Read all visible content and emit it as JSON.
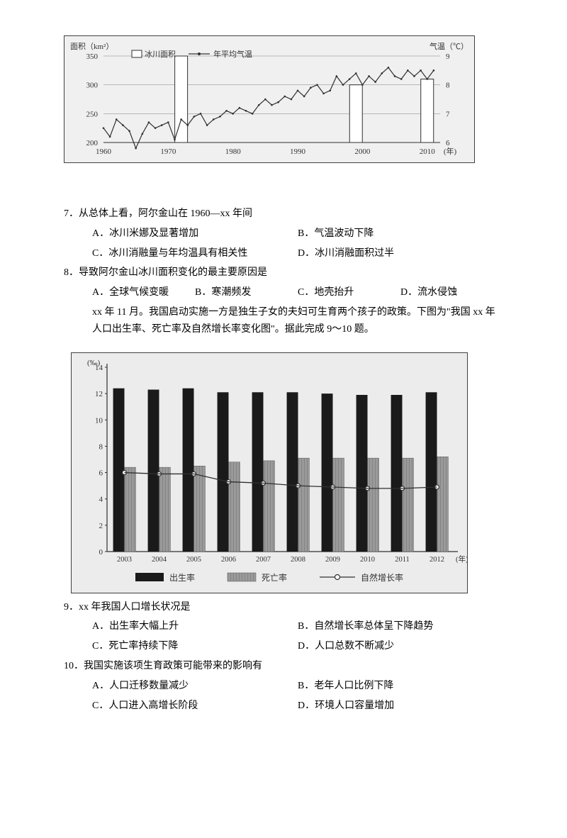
{
  "chart1": {
    "left_axis_title": "面积（km²）",
    "right_axis_title": "气温（℃）",
    "legend_bar": "冰川面积",
    "legend_line": "年平均气温",
    "x_ticks": [
      "1960",
      "1970",
      "1980",
      "1990",
      "2000",
      "2010",
      "(年)"
    ],
    "y_left_ticks": [
      "350",
      "300",
      "250",
      "200"
    ],
    "y_right_ticks": [
      "9",
      "8",
      "7",
      "6"
    ],
    "bars_x": [
      1972,
      1999,
      2010
    ],
    "bars_h": [
      350,
      300,
      310
    ],
    "temp_series": [
      6.5,
      6.2,
      6.8,
      6.6,
      6.4,
      5.8,
      6.3,
      6.7,
      6.5,
      6.6,
      6.7,
      6.1,
      6.8,
      6.6,
      6.9,
      7.0,
      6.6,
      6.8,
      6.9,
      7.1,
      7.0,
      7.2,
      7.1,
      7.0,
      7.3,
      7.5,
      7.3,
      7.4,
      7.6,
      7.5,
      7.8,
      7.6,
      7.9,
      8.0,
      7.7,
      7.8,
      8.3,
      8.0,
      8.2,
      8.4,
      8.0,
      8.3,
      8.1,
      8.4,
      8.6,
      8.3,
      8.2,
      8.5,
      8.3,
      8.5,
      8.2,
      8.5
    ],
    "bg": "#f0f0f0",
    "bar_fill": "#ffffff",
    "bar_stroke": "#303030",
    "line_color": "#303030",
    "grid_color": "#808080"
  },
  "q7": {
    "stem": "7．从总体上看，阿尔金山在 1960—xx 年间",
    "a": "A．冰川米娜及显著增加",
    "b": "B．气温波动下降",
    "c": "C．冰川消融量与年均温具有相关性",
    "d": "D．冰川消融面积过半"
  },
  "q8": {
    "stem": "8．导致阿尔金山冰川面积变化的最主要原因是",
    "a": "A．全球气候变暖",
    "b": "B．寒潮频发",
    "c": "C．地壳抬升",
    "d": "D．流水侵蚀"
  },
  "intro89": "xx 年 11 月。我国启动实施一方是独生子女的夫妇可生育两个孩子的政策。下图为\"我国 xx 年人口出生率、死亡率及自然增长率变化图\"。据此完成 9～10 题。",
  "chart2": {
    "y_title": "(‰)",
    "y_ticks": [
      "14",
      "12",
      "10",
      "8",
      "6",
      "4",
      "2",
      "0"
    ],
    "x_ticks": [
      "2003",
      "2004",
      "2005",
      "2006",
      "2007",
      "2008",
      "2009",
      "2010",
      "2011",
      "2012"
    ],
    "x_suffix": "(年)",
    "legend_birth": "出生率",
    "legend_death": "死亡率",
    "legend_nat": "自然增长率",
    "birth": [
      12.4,
      12.3,
      12.4,
      12.1,
      12.1,
      12.1,
      12.0,
      11.9,
      11.9,
      12.1
    ],
    "death": [
      6.4,
      6.4,
      6.5,
      6.8,
      6.9,
      7.1,
      7.1,
      7.1,
      7.1,
      7.2
    ],
    "natural": [
      6.0,
      5.9,
      5.9,
      5.3,
      5.2,
      5.0,
      4.9,
      4.8,
      4.8,
      4.9
    ],
    "bg": "#ececec",
    "bar_birth_fill": "#1a1a1a",
    "bar_death_fill": "#9a9a9a",
    "bar_death_pattern": "#6f6f6f",
    "line_color": "#303030",
    "axis_color": "#303030"
  },
  "q9": {
    "stem": "9．xx 年我国人口增长状况是",
    "a": "A．出生率大幅上升",
    "b": "B．自然增长率总体呈下降趋势",
    "c": "C．死亡率持续下降",
    "d": "D．人口总数不断减少"
  },
  "q10": {
    "stem": "10．我国实施该项生育政策可能带来的影响有",
    "a": "A．人口迁移数量减少",
    "b": "B．老年人口比例下降",
    "c": "C．人口进入高增长阶段",
    "d": "D．环境人口容量增加"
  }
}
